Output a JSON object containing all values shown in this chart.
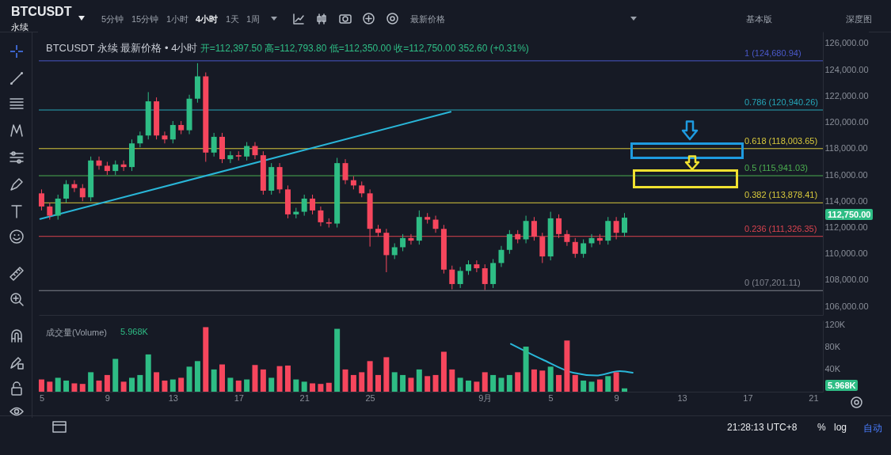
{
  "chart_data": [
    {
      "type": "candlestick",
      "title": "BTCUSDT 永续 最新价格 • 4小时",
      "subtitle": "开=112,397.50 高=112,793.80 低=112,350.00 收=112,750.00 352.60 (+0.31%)",
      "x": [
        "--08-05T00:00",
        "--08-05T12:00",
        "--08-06T00:00",
        "--08-06T12:00",
        "--08-07T00:00",
        "--08-07T12:00",
        "--08-08T00:00",
        "--08-08T12:00",
        "--08-09T00:00",
        "--08-09T12:00",
        "--08-10T00:00",
        "--08-10T12:00",
        "--08-11T00:00",
        "--08-11T12:00",
        "--08-12T00:00",
        "--08-12T12:00",
        "--08-13T00:00",
        "--08-13T12:00",
        "--08-14T00:00",
        "--08-14T12:00",
        "--08-15T00:00",
        "--08-15T12:00",
        "--08-16T00:00",
        "--08-16T12:00",
        "--08-17T00:00",
        "--08-17T12:00",
        "--08-18T00:00",
        "--08-18T12:00",
        "--08-19T00:00",
        "--08-19T12:00",
        "--08-20T00:00",
        "--08-20T12:00",
        "--08-21T00:00",
        "--08-21T12:00",
        "--08-22T00:00",
        "--08-22T12:00",
        "--08-23T00:00",
        "--08-23T12:00",
        "--08-24T00:00",
        "--08-24T12:00",
        "--08-25T00:00",
        "--08-25T12:00",
        "--08-26T00:00",
        "--08-26T12:00",
        "--08-27T00:00",
        "--08-27T12:00",
        "--08-28T00:00",
        "--08-28T12:00",
        "--08-29T00:00",
        "--08-29T12:00",
        "--08-30T00:00",
        "--08-30T12:00",
        "--08-31T00:00",
        "--08-31T12:00",
        "--09-01T00:00",
        "--09-01T12:00",
        "--09-02T00:00",
        "--09-02T12:00",
        "--09-03T00:00",
        "--09-03T12:00",
        "--09-04T00:00",
        "--09-04T12:00",
        "--09-05T00:00",
        "--09-05T12:00",
        "--09-06T00:00",
        "--09-06T12:00",
        "--09-07T00:00",
        "--09-07T12:00",
        "--09-08T00:00",
        "--09-08T12:00",
        "--09-09T00:00",
        "--09-09T12:00"
      ],
      "ohlc": [
        [
          114600,
          114900,
          113300,
          113600
        ],
        [
          113600,
          113900,
          112600,
          112900
        ],
        [
          112900,
          114500,
          112600,
          114200
        ],
        [
          114200,
          115600,
          113900,
          115300
        ],
        [
          115300,
          115600,
          114700,
          115000
        ],
        [
          115000,
          115300,
          114000,
          114300
        ],
        [
          114300,
          117400,
          114000,
          117100
        ],
        [
          117100,
          117400,
          116400,
          116700
        ],
        [
          116700,
          117000,
          116000,
          116300
        ],
        [
          116300,
          117100,
          116000,
          116800
        ],
        [
          116800,
          117100,
          116300,
          116600
        ],
        [
          116600,
          118700,
          116300,
          118400
        ],
        [
          118400,
          119300,
          118100,
          119000
        ],
        [
          119000,
          122300,
          118700,
          121600
        ],
        [
          121600,
          121900,
          118700,
          119000
        ],
        [
          119000,
          119300,
          118400,
          118700
        ],
        [
          118700,
          120100,
          118400,
          119800
        ],
        [
          119800,
          120100,
          119100,
          119400
        ],
        [
          119400,
          122100,
          119100,
          121800
        ],
        [
          121800,
          124500,
          121500,
          123500
        ],
        [
          123500,
          123800,
          117000,
          117700
        ],
        [
          117700,
          119200,
          117400,
          118900
        ],
        [
          118900,
          119200,
          116900,
          117200
        ],
        [
          117200,
          117800,
          116900,
          117500
        ],
        [
          117500,
          117800,
          117100,
          117400
        ],
        [
          117400,
          118500,
          117100,
          118200
        ],
        [
          118200,
          118500,
          117200,
          117500
        ],
        [
          117500,
          117800,
          114500,
          114800
        ],
        [
          114800,
          116900,
          114500,
          116600
        ],
        [
          116600,
          116900,
          114600,
          114900
        ],
        [
          114900,
          115200,
          112700,
          113000
        ],
        [
          113000,
          113500,
          112700,
          113200
        ],
        [
          113200,
          114500,
          112900,
          114200
        ],
        [
          114200,
          114500,
          113000,
          113300
        ],
        [
          113300,
          113600,
          112100,
          112400
        ],
        [
          112400,
          112700,
          112000,
          112300
        ],
        [
          112300,
          117300,
          112000,
          116900
        ],
        [
          116900,
          117200,
          115300,
          115600
        ],
        [
          115600,
          115900,
          114900,
          115200
        ],
        [
          115200,
          115500,
          114300,
          114600
        ],
        [
          114600,
          114900,
          110550,
          111900
        ],
        [
          111900,
          112200,
          111300,
          111600
        ],
        [
          111600,
          111900,
          108600,
          109900
        ],
        [
          109900,
          110800,
          109600,
          110500
        ],
        [
          110500,
          111500,
          110200,
          111200
        ],
        [
          111200,
          111500,
          110700,
          111000
        ],
        [
          111000,
          113300,
          110700,
          112800
        ],
        [
          112800,
          113100,
          112300,
          112600
        ],
        [
          112600,
          112900,
          111600,
          111900
        ],
        [
          111900,
          112200,
          108500,
          108800
        ],
        [
          108800,
          109100,
          107300,
          107700
        ],
        [
          107700,
          109000,
          107400,
          108700
        ],
        [
          108700,
          109500,
          108400,
          109200
        ],
        [
          109200,
          109500,
          108600,
          108900
        ],
        [
          108900,
          109200,
          107250,
          107700
        ],
        [
          107700,
          109600,
          107400,
          109300
        ],
        [
          109300,
          110600,
          109000,
          110300
        ],
        [
          110300,
          111800,
          110000,
          111500
        ],
        [
          111500,
          111800,
          110800,
          111100
        ],
        [
          111100,
          112900,
          110800,
          112500
        ],
        [
          112500,
          112800,
          111000,
          111300
        ],
        [
          111300,
          111600,
          109300,
          109800
        ],
        [
          109800,
          113200,
          109500,
          112700
        ],
        [
          112700,
          113000,
          111200,
          111500
        ],
        [
          111500,
          111800,
          110600,
          110900
        ],
        [
          110900,
          111200,
          109700,
          110000
        ],
        [
          110000,
          111100,
          109700,
          110800
        ],
        [
          110800,
          111500,
          110500,
          111200
        ],
        [
          111200,
          111500,
          110700,
          111000
        ],
        [
          111000,
          112800,
          110700,
          112500
        ],
        [
          112500,
          112800,
          111100,
          111600
        ],
        [
          111600,
          113100,
          111300,
          112750
        ]
      ],
      "colors": [
        "#f6465d",
        "#f6465d",
        "#2ebd85",
        "#2ebd85",
        "#f6465d",
        "#f6465d",
        "#2ebd85",
        "#f6465d",
        "#f6465d",
        "#2ebd85",
        "#f6465d",
        "#2ebd85",
        "#2ebd85",
        "#2ebd85",
        "#f6465d",
        "#f6465d",
        "#2ebd85",
        "#f6465d",
        "#2ebd85",
        "#2ebd85",
        "#f6465d",
        "#2ebd85",
        "#f6465d",
        "#2ebd85",
        "#f6465d",
        "#2ebd85",
        "#f6465d",
        "#f6465d",
        "#2ebd85",
        "#f6465d",
        "#f6465d",
        "#2ebd85",
        "#2ebd85",
        "#f6465d",
        "#f6465d",
        "#f6465d",
        "#2ebd85",
        "#f6465d",
        "#f6465d",
        "#f6465d",
        "#f6465d",
        "#f6465d",
        "#f6465d",
        "#2ebd85",
        "#2ebd85",
        "#f6465d",
        "#2ebd85",
        "#f6465d",
        "#f6465d",
        "#f6465d",
        "#f6465d",
        "#2ebd85",
        "#2ebd85",
        "#f6465d",
        "#f6465d",
        "#2ebd85",
        "#2ebd85",
        "#2ebd85",
        "#f6465d",
        "#2ebd85",
        "#f6465d",
        "#f6465d",
        "#2ebd85",
        "#f6465d",
        "#f6465d",
        "#f6465d",
        "#2ebd85",
        "#2ebd85",
        "#f6465d",
        "#2ebd85",
        "#f6465d",
        "#2ebd85"
      ],
      "series": [
        {
          "type": "line",
          "color": "#29b6d8",
          "x": [
            "--08-04T22:00",
            "--08-29T22:00"
          ],
          "values": [
            112650,
            120800
          ]
        }
      ],
      "xlim": [
        "--08-04T20:00",
        "--09-21T14:00"
      ],
      "ylim": [
        105350,
        126900
      ],
      "xticks": [
        {
          "value": "--08-05",
          "label": null
        },
        {
          "value": "--08-09",
          "label": null
        },
        {
          "value": "--08-13",
          "label": null
        },
        {
          "value": "--08-17",
          "label": null
        },
        {
          "value": "--08-21",
          "label": null
        },
        {
          "value": "--08-25",
          "label": null
        },
        {
          "value": "--09-01",
          "label": null
        },
        {
          "value": "--09-05",
          "label": null
        },
        {
          "value": "--09-09",
          "label": null
        },
        {
          "value": "--09-13",
          "label": null
        },
        {
          "value": "--09-17",
          "label": null
        },
        {
          "value": "--09-21",
          "label": null
        }
      ],
      "yticks": [
        {
          "value": 106000,
          "label": "106,000.00"
        },
        {
          "value": 108000,
          "label": "108,000.00"
        },
        {
          "value": 110000,
          "label": "110,000.00"
        },
        {
          "value": 112000,
          "label": "112,000.00"
        },
        {
          "value": 114000,
          "label": "114,000.00"
        },
        {
          "value": 116000,
          "label": "116,000.00"
        },
        {
          "value": 118000,
          "label": "118,000.00"
        },
        {
          "value": 120000,
          "label": "120,000.00"
        },
        {
          "value": 122000,
          "label": "122,000.00"
        },
        {
          "value": 124000,
          "label": "124,000.00"
        },
        {
          "value": 126000,
          "label": "126,000.00"
        }
      ],
      "ref_lines": [
        {
          "axis": "y",
          "value": 124680.94,
          "label": "1 (124,680.94)",
          "color": "#4a58c8"
        },
        {
          "axis": "y",
          "value": 120940.26,
          "label": "0.786 (120,940.26)",
          "color": "#26a6b8"
        },
        {
          "axis": "y",
          "value": 118003.65,
          "label": "0.618 (118,003.65)",
          "color": "#d8c93c"
        },
        {
          "axis": "y",
          "value": 115941.03,
          "label": "0.5 (115,941.03)",
          "color": "#4caf50"
        },
        {
          "axis": "y",
          "value": 113878.41,
          "label": "0.382 (113,878.41)",
          "color": "#d8c93c"
        },
        {
          "axis": "y",
          "value": 111326.35,
          "label": "0.236 (111,326.35)",
          "color": "#d9434f"
        },
        {
          "axis": "y",
          "value": 107201.11,
          "label": "0 (107,201.11)",
          "color": "#80848e"
        }
      ],
      "annotations": [
        "BTCUSDT",
        "永续",
        "5分钟",
        "15分钟",
        "1小时",
        "4小时",
        "1天",
        "1周",
        "最新价格",
        "基本版",
        "深度图",
        "21:28:13 UTC+8",
        "%",
        "log",
        "自动",
        "112,750.00"
      ],
      "tick_labels": "y"
    },
    {
      "type": "bar",
      "x": [
        "--08-05T00:00",
        "--08-05T12:00",
        "--08-06T00:00",
        "--08-06T12:00",
        "--08-07T00:00",
        "--08-07T12:00",
        "--08-08T00:00",
        "--08-08T12:00",
        "--08-09T00:00",
        "--08-09T12:00",
        "--08-10T00:00",
        "--08-10T12:00",
        "--08-11T00:00",
        "--08-11T12:00",
        "--08-12T00:00",
        "--08-12T12:00",
        "--08-13T00:00",
        "--08-13T12:00",
        "--08-14T00:00",
        "--08-14T12:00",
        "--08-15T00:00",
        "--08-15T12:00",
        "--08-16T00:00",
        "--08-16T12:00",
        "--08-17T00:00",
        "--08-17T12:00",
        "--08-18T00:00",
        "--08-18T12:00",
        "--08-19T00:00",
        "--08-19T12:00",
        "--08-20T00:00",
        "--08-20T12:00",
        "--08-21T00:00",
        "--08-21T12:00",
        "--08-22T00:00",
        "--08-22T12:00",
        "--08-23T00:00",
        "--08-23T12:00",
        "--08-24T00:00",
        "--08-24T12:00",
        "--08-25T00:00",
        "--08-25T12:00",
        "--08-26T00:00",
        "--08-26T12:00",
        "--08-27T00:00",
        "--08-27T12:00",
        "--08-28T00:00",
        "--08-28T12:00",
        "--08-29T00:00",
        "--08-29T12:00",
        "--08-30T00:00",
        "--08-30T12:00",
        "--08-31T00:00",
        "--08-31T12:00",
        "--09-01T00:00",
        "--09-01T12:00",
        "--09-02T00:00",
        "--09-02T12:00",
        "--09-03T00:00",
        "--09-03T12:00",
        "--09-04T00:00",
        "--09-04T12:00",
        "--09-05T00:00",
        "--09-05T12:00",
        "--09-06T00:00",
        "--09-06T12:00",
        "--09-07T00:00",
        "--09-07T12:00",
        "--09-08T00:00",
        "--09-08T12:00",
        "--09-09T00:00",
        "--09-09T12:00"
      ],
      "values": [
        22000,
        18000,
        25000,
        20000,
        15000,
        14000,
        35000,
        20000,
        30000,
        59000,
        18000,
        25000,
        30000,
        67000,
        35000,
        20000,
        22000,
        25000,
        45000,
        55000,
        116000,
        40000,
        49000,
        25000,
        20000,
        22000,
        48000,
        40000,
        25000,
        46000,
        47000,
        22000,
        18000,
        15000,
        14000,
        16000,
        113000,
        40000,
        30000,
        35000,
        55000,
        30000,
        62000,
        35000,
        30000,
        25000,
        40000,
        28000,
        30000,
        72000,
        40000,
        25000,
        20000,
        18000,
        35000,
        30000,
        25000,
        30000,
        35000,
        81000,
        40000,
        38000,
        45000,
        30000,
        92000,
        30000,
        20000,
        18000,
        22000,
        28000,
        35000,
        6000
      ],
      "colors": [
        "#f6465d",
        "#f6465d",
        "#2ebd85",
        "#2ebd85",
        "#f6465d",
        "#f6465d",
        "#2ebd85",
        "#f6465d",
        "#f6465d",
        "#2ebd85",
        "#f6465d",
        "#2ebd85",
        "#2ebd85",
        "#2ebd85",
        "#f6465d",
        "#f6465d",
        "#2ebd85",
        "#f6465d",
        "#2ebd85",
        "#2ebd85",
        "#f6465d",
        "#2ebd85",
        "#f6465d",
        "#2ebd85",
        "#f6465d",
        "#2ebd85",
        "#f6465d",
        "#f6465d",
        "#2ebd85",
        "#f6465d",
        "#f6465d",
        "#2ebd85",
        "#2ebd85",
        "#f6465d",
        "#f6465d",
        "#f6465d",
        "#2ebd85",
        "#f6465d",
        "#f6465d",
        "#f6465d",
        "#f6465d",
        "#f6465d",
        "#f6465d",
        "#2ebd85",
        "#2ebd85",
        "#f6465d",
        "#2ebd85",
        "#f6465d",
        "#f6465d",
        "#f6465d",
        "#f6465d",
        "#2ebd85",
        "#2ebd85",
        "#f6465d",
        "#f6465d",
        "#2ebd85",
        "#2ebd85",
        "#2ebd85",
        "#f6465d",
        "#2ebd85",
        "#f6465d",
        "#f6465d",
        "#2ebd85",
        "#f6465d",
        "#f6465d",
        "#f6465d",
        "#2ebd85",
        "#2ebd85",
        "#f6465d",
        "#2ebd85",
        "#f6465d",
        "#2ebd85"
      ],
      "series": [
        {
          "type": "line",
          "color": "#29b6d8",
          "x": [
            "--09-02T14:00",
            "--09-04T12:00",
            "--09-06T09:00",
            "--09-07T19:00",
            "--09-09T05:00",
            "--09-10T00:00"
          ],
          "values": [
            86000,
            58000,
            34000,
            29000,
            37000,
            34000
          ]
        }
      ],
      "xlim": [
        "--08-04T20:00",
        "--09-21T14:00"
      ],
      "ylim": [
        0,
        128000
      ],
      "xticks": [
        {
          "value": "--08-05",
          "label": "5"
        },
        {
          "value": "--08-09",
          "label": "9"
        },
        {
          "value": "--08-13",
          "label": "13"
        },
        {
          "value": "--08-17",
          "label": "17"
        },
        {
          "value": "--08-21",
          "label": "21"
        },
        {
          "value": "--08-25",
          "label": "25"
        },
        {
          "value": "--09-01",
          "label": "9月"
        },
        {
          "value": "--09-05",
          "label": "5"
        },
        {
          "value": "--09-09",
          "label": "9"
        },
        {
          "value": "--09-13",
          "label": "13"
        },
        {
          "value": "--09-17",
          "label": "17"
        },
        {
          "value": "--09-21",
          "label": "21"
        }
      ],
      "yticks": [
        {
          "value": 40000,
          "label": "40K"
        },
        {
          "value": 80000,
          "label": "80K"
        },
        {
          "value": 120000,
          "label": "120K"
        }
      ],
      "annotations": [
        "成交量(Volume)",
        "5.968K",
        "5.968K"
      ]
    }
  ]
}
